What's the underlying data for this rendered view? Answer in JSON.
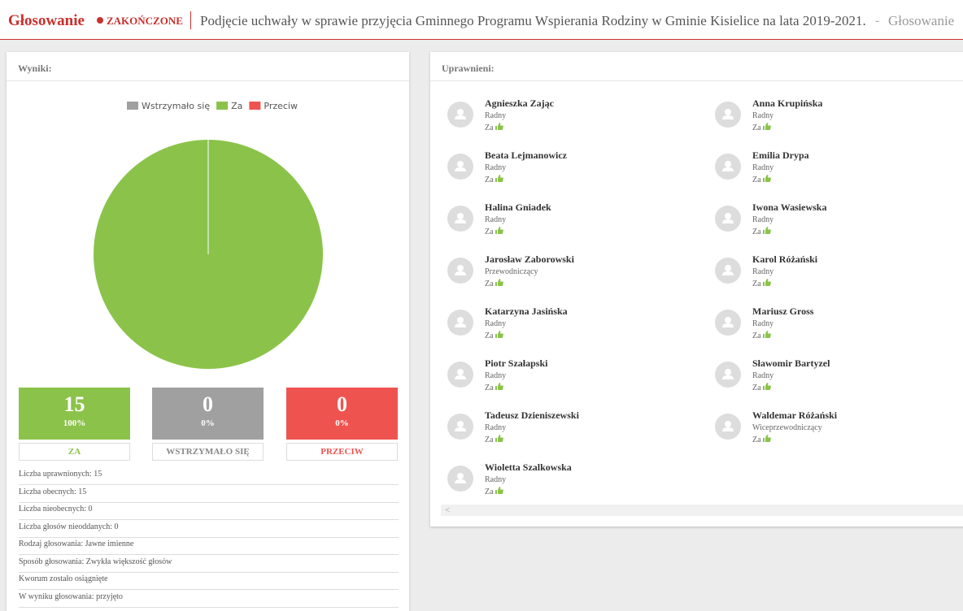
{
  "header": {
    "title": "Głosowanie",
    "status": "ZAKOŃCZONE",
    "subtitle": "Podjęcie uchwały w sprawie przyjęcia Gminnego Programu Wspierania Rodziny w Gminie Kisielice na lata 2019-2021.",
    "separator": "-",
    "breadcrumb": "Głosowanie"
  },
  "results": {
    "title": "Wyniki:",
    "chart": {
      "type": "pie",
      "categories": [
        "Wstrzymało się",
        "Za",
        "Przeciw"
      ],
      "values": [
        0,
        15,
        0
      ],
      "colors": [
        "#a0a0a0",
        "#8bc34a",
        "#ef5350"
      ]
    },
    "boxes": [
      {
        "count": "15",
        "percent": "100%",
        "label": "ZA"
      },
      {
        "count": "0",
        "percent": "0%",
        "label": "WSTRZYMAŁO SIĘ"
      },
      {
        "count": "0",
        "percent": "0%",
        "label": "PRZECIW"
      }
    ],
    "stats": [
      "Liczba uprawnionych: 15",
      "Liczba obecnych: 15",
      "Liczba nieobecnych: 0",
      "Liczba głosów nieoddanych: 0",
      "Rodzaj głosowania: Jawne imienne",
      "Sposób głosowania: Zwykła większość głosów",
      "Kworum zostało osiągnięte",
      "W wyniku głosowania: przyjęto"
    ]
  },
  "eligible": {
    "title": "Uprawnieni:",
    "people": [
      {
        "name": "Agnieszka Zając",
        "role": "Radny",
        "vote": "Za"
      },
      {
        "name": "Anna Krupińska",
        "role": "Radny",
        "vote": "Za"
      },
      {
        "name": "Beata Lejmanowicz",
        "role": "Radny",
        "vote": "Za"
      },
      {
        "name": "Emilia Drypa",
        "role": "Radny",
        "vote": "Za"
      },
      {
        "name": "Halina Gniadek",
        "role": "Radny",
        "vote": "Za"
      },
      {
        "name": "Iwona Wasiewska",
        "role": "Radny",
        "vote": "Za"
      },
      {
        "name": "Jarosław Zaborowski",
        "role": "Przewodniczący",
        "vote": "Za"
      },
      {
        "name": "Karol Różański",
        "role": "Radny",
        "vote": "Za"
      },
      {
        "name": "Katarzyna Jasińska",
        "role": "Radny",
        "vote": "Za"
      },
      {
        "name": "Mariusz Gross",
        "role": "Radny",
        "vote": "Za"
      },
      {
        "name": "Piotr Szałapski",
        "role": "Radny",
        "vote": "Za"
      },
      {
        "name": "Sławomir Bartyzel",
        "role": "Radny",
        "vote": "Za"
      },
      {
        "name": "Tadeusz Dzieniszewski",
        "role": "Radny",
        "vote": "Za"
      },
      {
        "name": "Waldemar Różański",
        "role": "Wiceprzewodniczący",
        "vote": "Za"
      },
      {
        "name": "Wioletta Szalkowska",
        "role": "Radny",
        "vote": "Za"
      }
    ]
  }
}
